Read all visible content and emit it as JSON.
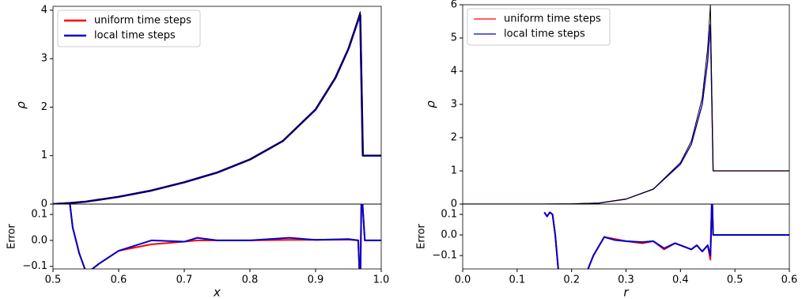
{
  "chart_data": [
    {
      "type": "line",
      "ylabel": "ρ",
      "xlim": [
        0.5,
        1.0
      ],
      "ylim": [
        0,
        4.08
      ],
      "yticks": [
        0,
        1,
        2,
        3,
        4
      ],
      "legend": "upper left",
      "linewidth": 2.5,
      "x": [
        0.5,
        0.525,
        0.55,
        0.6,
        0.65,
        0.7,
        0.75,
        0.8,
        0.85,
        0.9,
        0.93,
        0.95,
        0.965,
        0.968,
        0.972,
        0.98,
        1.0
      ],
      "series": [
        {
          "name": "uniform time steps",
          "color": "#ff0000",
          "values": [
            0.0,
            0.02,
            0.05,
            0.15,
            0.28,
            0.45,
            0.65,
            0.92,
            1.3,
            1.95,
            2.6,
            3.2,
            3.8,
            3.9,
            1.0,
            1.0,
            1.0
          ]
        },
        {
          "name": "local time steps",
          "color": "#0000cc",
          "values": [
            0.0,
            0.02,
            0.05,
            0.15,
            0.28,
            0.45,
            0.65,
            0.92,
            1.3,
            1.95,
            2.6,
            3.2,
            3.8,
            3.9,
            1.0,
            1.0,
            1.0
          ]
        },
        {
          "color": "#000000",
          "values": [
            0.0,
            0.02,
            0.05,
            0.15,
            0.28,
            0.45,
            0.65,
            0.92,
            1.3,
            1.95,
            2.6,
            3.2,
            3.85,
            3.97,
            1.0,
            1.0,
            1.0
          ]
        }
      ]
    },
    {
      "type": "line",
      "ylabel": "Error",
      "xlabel": "x",
      "xlim": [
        0.5,
        1.0
      ],
      "ylim": [
        -0.11,
        0.14
      ],
      "linewidth": 2,
      "xticks": [
        0.5,
        0.6,
        0.7,
        0.8,
        0.9,
        {
          "value": 1.0,
          "label": "1.0"
        }
      ],
      "yticks": [
        {
          "value": -0.1,
          "label": "−0.1"
        },
        {
          "value": 0.0,
          "label": "0.0"
        },
        {
          "value": 0.1,
          "label": "0.1"
        }
      ],
      "x": [
        0.523,
        0.53,
        0.54,
        0.55,
        0.56,
        0.57,
        0.6,
        0.65,
        0.7,
        0.72,
        0.75,
        0.8,
        0.86,
        0.9,
        0.95,
        0.965,
        0.968,
        0.97,
        0.975,
        1.0
      ],
      "series": [
        {
          "color": "#ff0000",
          "values": [
            0.2,
            0.05,
            -0.05,
            -0.12,
            -0.11,
            -0.09,
            -0.04,
            -0.015,
            -0.005,
            0.0,
            0.0,
            0.0,
            0.002,
            0.002,
            0.003,
            0.0,
            -0.2,
            0.2,
            0.0,
            0.0
          ]
        },
        {
          "color": "#0000cc",
          "values": [
            0.2,
            0.05,
            -0.05,
            -0.12,
            -0.11,
            -0.09,
            -0.04,
            0.0,
            -0.005,
            0.01,
            0.0,
            0.0,
            0.01,
            0.002,
            0.005,
            0.0,
            -0.2,
            0.2,
            0.0,
            0.0
          ]
        }
      ]
    },
    {
      "type": "line",
      "ylabel": "ρ",
      "xlim": [
        0.0,
        0.6
      ],
      "ylim": [
        0,
        6
      ],
      "yticks": [
        0,
        1,
        2,
        3,
        4,
        5,
        6
      ],
      "legend": "upper left",
      "linewidth": 1.3,
      "x": [
        0.0,
        0.1,
        0.15,
        0.2,
        0.25,
        0.3,
        0.35,
        0.4,
        0.42,
        0.44,
        0.45,
        0.455,
        0.46,
        0.5,
        0.6
      ],
      "series": [
        {
          "name": "uniform time steps",
          "color": "#ff0000",
          "values": [
            0.0,
            0.0,
            0.0,
            0.005,
            0.03,
            0.15,
            0.45,
            1.2,
            1.8,
            3.0,
            4.3,
            5.4,
            1.0,
            1.0,
            1.0
          ]
        },
        {
          "name": "local time steps",
          "color": "#0000cc",
          "values": [
            0.0,
            0.0,
            0.0,
            0.005,
            0.03,
            0.15,
            0.45,
            1.2,
            1.8,
            3.0,
            4.3,
            5.4,
            1.0,
            1.0,
            1.0
          ]
        },
        {
          "color": "#000000",
          "values": [
            0.0,
            0.0,
            0.0,
            0.005,
            0.03,
            0.15,
            0.45,
            1.25,
            1.9,
            3.2,
            4.7,
            6.0,
            1.0,
            1.0,
            1.0
          ]
        }
      ]
    },
    {
      "type": "line",
      "ylabel": "Error",
      "xlabel": "r",
      "xlim": [
        0.0,
        0.6
      ],
      "ylim": [
        -0.165,
        0.15
      ],
      "linewidth": 2,
      "xticks": [
        {
          "value": 0,
          "label": "0.0"
        },
        0.1,
        0.2,
        0.3,
        0.4,
        0.5,
        0.6
      ],
      "yticks": [
        {
          "value": -0.1,
          "label": "−0.1"
        },
        {
          "value": 0.0,
          "label": "0.0"
        },
        {
          "value": 0.1,
          "label": "0.1"
        }
      ],
      "x": [
        0.15,
        0.155,
        0.16,
        0.165,
        0.17,
        0.18,
        0.225,
        0.24,
        0.26,
        0.28,
        0.3,
        0.33,
        0.35,
        0.37,
        0.39,
        0.41,
        0.42,
        0.43,
        0.44,
        0.45,
        0.455,
        0.458,
        0.46,
        0.6
      ],
      "series": [
        {
          "color": "#ff0000",
          "values": [
            0.11,
            0.09,
            0.11,
            0.1,
            0.0,
            -0.3,
            -0.2,
            -0.1,
            -0.01,
            -0.02,
            -0.03,
            -0.04,
            -0.03,
            -0.07,
            -0.04,
            -0.06,
            -0.07,
            -0.05,
            -0.08,
            -0.05,
            -0.12,
            0.2,
            0.0,
            0.0
          ]
        },
        {
          "color": "#0000cc",
          "values": [
            0.11,
            0.09,
            0.11,
            0.1,
            0.0,
            -0.3,
            -0.2,
            -0.1,
            -0.01,
            -0.025,
            -0.03,
            -0.035,
            -0.03,
            -0.065,
            -0.04,
            -0.06,
            -0.07,
            -0.05,
            -0.08,
            -0.05,
            -0.1,
            0.2,
            0.0,
            0.0
          ]
        }
      ]
    }
  ]
}
